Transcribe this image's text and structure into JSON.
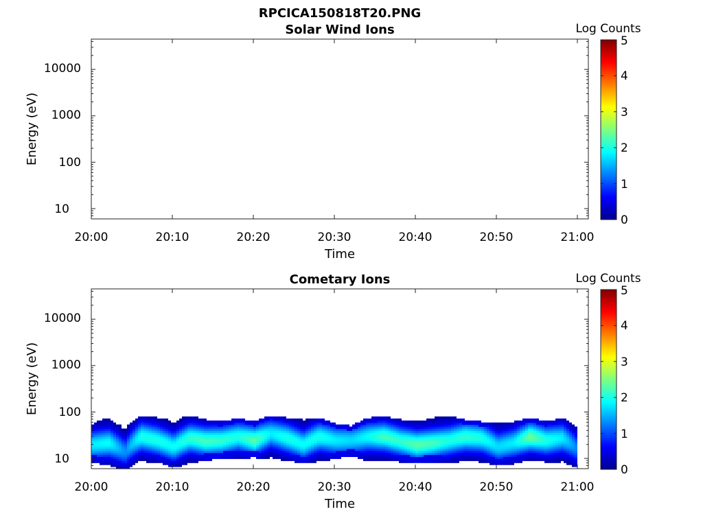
{
  "figure_title": "RPCICA150818T20.PNG",
  "chart_data": [
    {
      "type": "heatmap",
      "title": "Solar Wind Ions",
      "xlabel": "Time",
      "ylabel": "Energy (eV)",
      "x_ticks": [
        "20:00",
        "20:10",
        "20:20",
        "20:30",
        "20:40",
        "20:50",
        "21:00"
      ],
      "xlim": [
        "20:00",
        "21:00"
      ],
      "y_scale": "log",
      "y_ticks": [
        "10",
        "100",
        "1000",
        "10000"
      ],
      "ylim": [
        6,
        45000
      ],
      "colorbar": {
        "label": "Log Counts",
        "ticks": [
          "0",
          "1",
          "2",
          "3",
          "4",
          "5"
        ],
        "range": [
          0,
          5
        ],
        "colormap": "jet"
      },
      "cells": []
    },
    {
      "type": "heatmap",
      "title": "Cometary Ions",
      "xlabel": "Time",
      "ylabel": "Energy (eV)",
      "x_ticks": [
        "20:00",
        "20:10",
        "20:20",
        "20:30",
        "20:40",
        "20:50",
        "21:00"
      ],
      "xlim": [
        "20:00",
        "21:00"
      ],
      "y_scale": "log",
      "y_ticks": [
        "10",
        "100",
        "1000",
        "10000"
      ],
      "ylim": [
        6,
        45000
      ],
      "colorbar": {
        "label": "Log Counts",
        "ticks": [
          "0",
          "1",
          "2",
          "3",
          "4",
          "5"
        ],
        "range": [
          0,
          5
        ],
        "colormap": "jet"
      },
      "energy_range_eV": [
        6,
        80
      ],
      "data_span": [
        "20:00",
        "21:00"
      ],
      "band": [
        {
          "t": "20:00",
          "e_lo": 12,
          "e_hi": 45,
          "peak_e": 20,
          "peak_log": 1.8
        },
        {
          "t": "20:02",
          "e_lo": 10,
          "e_hi": 60,
          "peak_e": 22,
          "peak_log": 1.9
        },
        {
          "t": "20:04",
          "e_lo": 8,
          "e_hi": 35,
          "peak_e": 14,
          "peak_log": 1.3
        },
        {
          "t": "20:06",
          "e_lo": 10,
          "e_hi": 70,
          "peak_e": 30,
          "peak_log": 2.0
        },
        {
          "t": "20:08",
          "e_lo": 12,
          "e_hi": 60,
          "peak_e": 25,
          "peak_log": 2.0
        },
        {
          "t": "20:10",
          "e_lo": 9,
          "e_hi": 55,
          "peak_e": 18,
          "peak_log": 1.9
        },
        {
          "t": "20:12",
          "e_lo": 11,
          "e_hi": 70,
          "peak_e": 28,
          "peak_log": 2.1
        },
        {
          "t": "20:14",
          "e_lo": 13,
          "e_hi": 55,
          "peak_e": 24,
          "peak_log": 2.2
        },
        {
          "t": "20:16",
          "e_lo": 14,
          "e_hi": 50,
          "peak_e": 25,
          "peak_log": 2.1
        },
        {
          "t": "20:18",
          "e_lo": 14,
          "e_hi": 60,
          "peak_e": 30,
          "peak_log": 2.0
        },
        {
          "t": "20:20",
          "e_lo": 15,
          "e_hi": 50,
          "peak_e": 25,
          "peak_log": 2.3
        },
        {
          "t": "20:22",
          "e_lo": 12,
          "e_hi": 70,
          "peak_e": 35,
          "peak_log": 1.8
        },
        {
          "t": "20:24",
          "e_lo": 13,
          "e_hi": 60,
          "peak_e": 28,
          "peak_log": 2.0
        },
        {
          "t": "20:26",
          "e_lo": 11,
          "e_hi": 55,
          "peak_e": 20,
          "peak_log": 1.9
        },
        {
          "t": "20:28",
          "e_lo": 12,
          "e_hi": 60,
          "peak_e": 30,
          "peak_log": 2.0
        },
        {
          "t": "20:30",
          "e_lo": 14,
          "e_hi": 45,
          "peak_e": 25,
          "peak_log": 1.8
        },
        {
          "t": "20:32",
          "e_lo": 16,
          "e_hi": 40,
          "peak_e": 25,
          "peak_log": 1.7
        },
        {
          "t": "20:34",
          "e_lo": 12,
          "e_hi": 60,
          "peak_e": 30,
          "peak_log": 1.9
        },
        {
          "t": "20:36",
          "e_lo": 13,
          "e_hi": 65,
          "peak_e": 30,
          "peak_log": 2.2
        },
        {
          "t": "20:38",
          "e_lo": 12,
          "e_hi": 55,
          "peak_e": 24,
          "peak_log": 2.1
        },
        {
          "t": "20:40",
          "e_lo": 11,
          "e_hi": 50,
          "peak_e": 20,
          "peak_log": 2.3
        },
        {
          "t": "20:42",
          "e_lo": 12,
          "e_hi": 60,
          "peak_e": 22,
          "peak_log": 2.2
        },
        {
          "t": "20:44",
          "e_lo": 11,
          "e_hi": 65,
          "peak_e": 25,
          "peak_log": 2.0
        },
        {
          "t": "20:46",
          "e_lo": 12,
          "e_hi": 55,
          "peak_e": 30,
          "peak_log": 2.1
        },
        {
          "t": "20:48",
          "e_lo": 12,
          "e_hi": 50,
          "peak_e": 28,
          "peak_log": 2.0
        },
        {
          "t": "20:50",
          "e_lo": 10,
          "e_hi": 45,
          "peak_e": 18,
          "peak_log": 1.7
        },
        {
          "t": "20:52",
          "e_lo": 11,
          "e_hi": 50,
          "peak_e": 22,
          "peak_log": 1.8
        },
        {
          "t": "20:54",
          "e_lo": 13,
          "e_hi": 60,
          "peak_e": 30,
          "peak_log": 2.4
        },
        {
          "t": "20:56",
          "e_lo": 12,
          "e_hi": 50,
          "peak_e": 25,
          "peak_log": 2.0
        },
        {
          "t": "20:58",
          "e_lo": 11,
          "e_hi": 60,
          "peak_e": 28,
          "peak_log": 1.8
        },
        {
          "t": "21:00",
          "e_lo": 9,
          "e_hi": 35,
          "peak_e": 15,
          "peak_log": 1.2
        }
      ]
    }
  ]
}
